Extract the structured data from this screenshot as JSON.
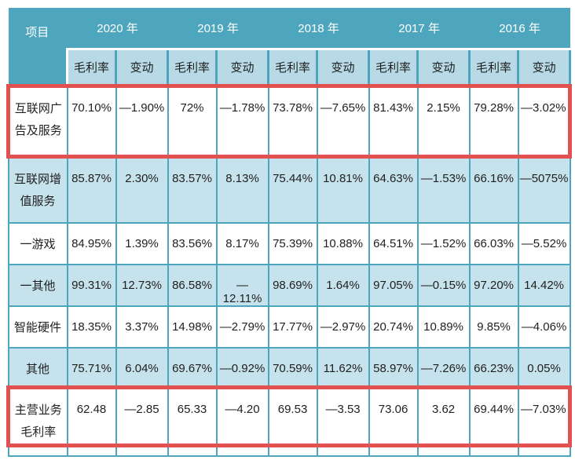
{
  "table": {
    "corner_header": "项目",
    "years": [
      "2020 年",
      "2019 年",
      "2018 年",
      "2017 年",
      "2016 年"
    ],
    "sub_headers": [
      "毛利率",
      "变动"
    ],
    "rows": [
      {
        "label": "互联网广告及服务",
        "highlight": true,
        "values": [
          "70.10%",
          "—1.90%",
          "72%",
          "—1.78%",
          "73.78%",
          "—7.65%",
          "81.43%",
          "2.15%",
          "79.28%",
          "—3.02%"
        ]
      },
      {
        "label": "互联网增值服务",
        "highlight": false,
        "values": [
          "85.87%",
          "2.30%",
          "83.57%",
          "8.13%",
          "75.44%",
          "10.81%",
          "64.63%",
          "—1.53%",
          "66.16%",
          "—5075%"
        ]
      },
      {
        "label": "一游戏",
        "highlight": false,
        "values": [
          "84.95%",
          "1.39%",
          "83.56%",
          "8.17%",
          "75.39%",
          "10.88%",
          "64.51%",
          "—1.52%",
          "66.03%",
          "—5.52%"
        ]
      },
      {
        "label": "一其他",
        "highlight": false,
        "values": [
          "99.31%",
          "12.73%",
          "86.58%",
          "—12.11%",
          "98.69%",
          "1.64%",
          "97.05%",
          "—0.15%",
          "97.20%",
          "14.42%"
        ]
      },
      {
        "label": "智能硬件",
        "highlight": false,
        "values": [
          "18.35%",
          "3.37%",
          "14.98%",
          "—2.79%",
          "17.77%",
          "—2.97%",
          "20.74%",
          "10.89%",
          "9.85%",
          "—4.06%"
        ]
      },
      {
        "label": "其他",
        "highlight": false,
        "values": [
          "75.71%",
          "6.04%",
          "69.67%",
          "—0.92%",
          "70.59%",
          "11.62%",
          "58.97%",
          "—7.26%",
          "66.23%",
          "0.05%"
        ]
      },
      {
        "label": "主营业务毛利率",
        "highlight": true,
        "values": [
          "62.48",
          "—2.85",
          "65.33",
          "—4.20",
          "69.53",
          "—3.53",
          "73.06",
          "3.62",
          "69.44%",
          "—7.03%"
        ]
      }
    ]
  },
  "colors": {
    "header_teal": "#4ea6be",
    "subheader_blue": "#b7dae6",
    "row_alt_blue": "#c6e2ec",
    "row_white": "#ffffff",
    "border_teal": "#4ea6be",
    "highlight_red": "#e2514f",
    "header_text": "#ffffff",
    "cell_text": "#1f1f1f"
  }
}
